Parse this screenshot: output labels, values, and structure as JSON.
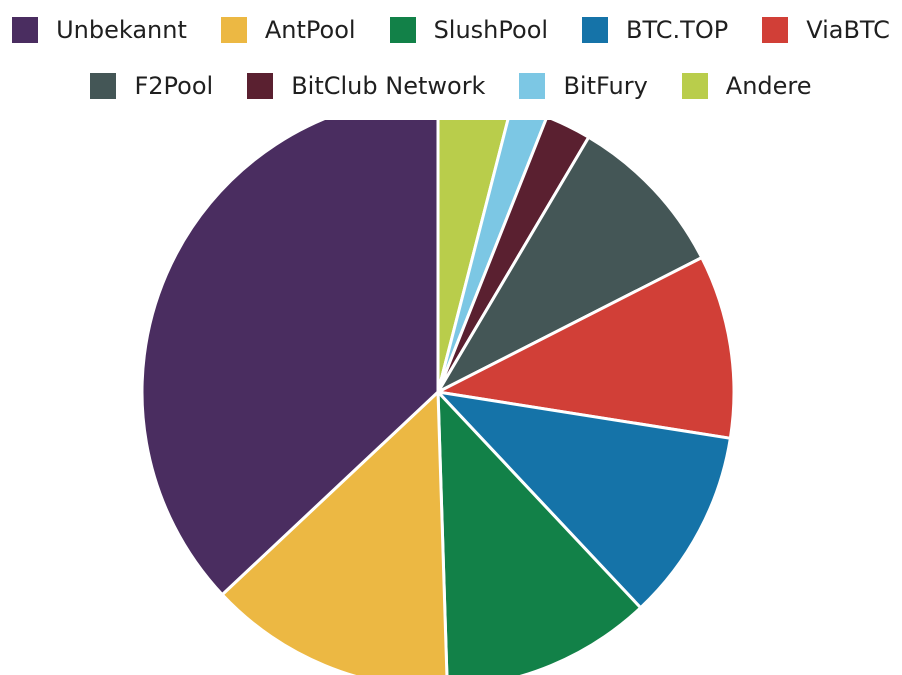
{
  "chart_data": {
    "type": "pie",
    "title": "",
    "legend_position": "top",
    "slices": [
      {
        "label": "Andere",
        "value": 4.0,
        "color": "#b9cd4b"
      },
      {
        "label": "BitFury",
        "value": 2.0,
        "color": "#7cc7e4"
      },
      {
        "label": "BitClub Network",
        "value": 2.5,
        "color": "#5a2030"
      },
      {
        "label": "F2Pool",
        "value": 9.0,
        "color": "#445656"
      },
      {
        "label": "ViaBTC",
        "value": 10.0,
        "color": "#d13f37"
      },
      {
        "label": "BTC.TOP",
        "value": 10.5,
        "color": "#1573a8"
      },
      {
        "label": "SlushPool",
        "value": 11.5,
        "color": "#128148"
      },
      {
        "label": "AntPool",
        "value": 13.5,
        "color": "#ecb843"
      },
      {
        "label": "Unbekannt",
        "value": 37.0,
        "color": "#4a2d60"
      }
    ]
  },
  "legend": {
    "row1": [
      {
        "label": "Unbekannt",
        "color": "#4a2d60"
      },
      {
        "label": "AntPool",
        "color": "#ecb843"
      },
      {
        "label": "SlushPool",
        "color": "#128148"
      },
      {
        "label": "BTC.TOP",
        "color": "#1573a8"
      },
      {
        "label": "ViaBTC",
        "color": "#d13f37"
      }
    ],
    "row2": [
      {
        "label": "F2Pool",
        "color": "#445656"
      },
      {
        "label": "BitClub Network",
        "color": "#5a2030"
      },
      {
        "label": "BitFury",
        "color": "#7cc7e4"
      },
      {
        "label": "Andere",
        "color": "#b9cd4b"
      }
    ]
  }
}
